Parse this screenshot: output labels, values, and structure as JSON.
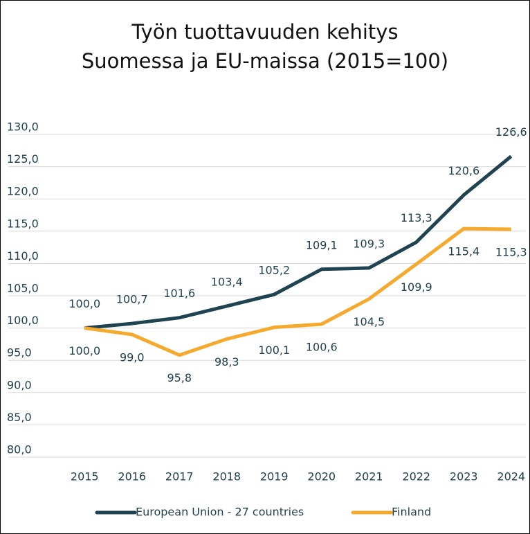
{
  "chart_data": {
    "type": "line",
    "title": [
      "Työn  tuottavuuden kehitys",
      "Suomessa ja EU-maissa (2015=100)"
    ],
    "categories": [
      "2015",
      "2016",
      "2017",
      "2018",
      "2019",
      "2020",
      "2021",
      "2022",
      "2023",
      "2024"
    ],
    "series": [
      {
        "name": "European Union - 27 countries",
        "color": "#1f4350",
        "values": [
          100.0,
          100.7,
          101.6,
          103.4,
          105.2,
          109.1,
          109.3,
          113.3,
          120.6,
          126.6
        ],
        "value_labels": [
          "100,0",
          "100,7",
          "101,6",
          "103,4",
          "105,2",
          "109,1",
          "109,3",
          "113,3",
          "120,6",
          "126,6"
        ]
      },
      {
        "name": "Finland",
        "color": "#f5aa2e",
        "values": [
          100.0,
          99.0,
          95.8,
          98.3,
          100.1,
          100.6,
          104.5,
          109.9,
          115.4,
          115.3
        ],
        "value_labels": [
          "100,0",
          "99,0",
          "95,8",
          "98,3",
          "100,1",
          "100,6",
          "104,5",
          "109,9",
          "115,4",
          "115,3"
        ]
      }
    ],
    "ylim": [
      80,
      130
    ],
    "yticks": [
      {
        "value": 80,
        "label": "80,0"
      },
      {
        "value": 85,
        "label": "85,0"
      },
      {
        "value": 90,
        "label": "90,0"
      },
      {
        "value": 95,
        "label": "95,0"
      },
      {
        "value": 100,
        "label": "100,0"
      },
      {
        "value": 105,
        "label": "105,0"
      },
      {
        "value": 110,
        "label": "110,0"
      },
      {
        "value": 115,
        "label": "115,0"
      },
      {
        "value": 120,
        "label": "120,0"
      },
      {
        "value": 125,
        "label": "125,0"
      },
      {
        "value": 130,
        "label": "130,0"
      }
    ],
    "grid": true,
    "legend": "bottom"
  }
}
